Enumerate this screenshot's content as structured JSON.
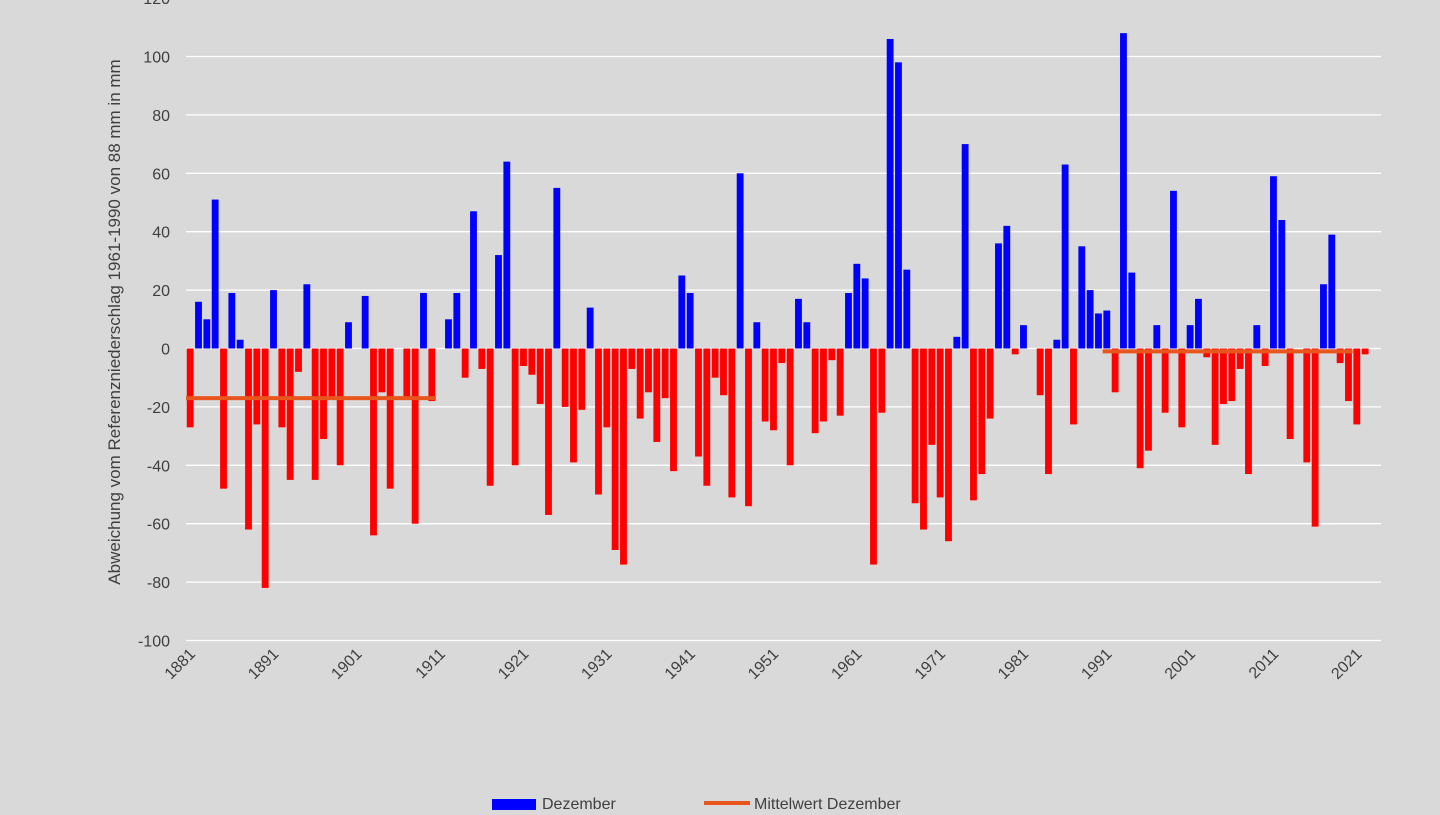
{
  "chart_data": {
    "type": "bar",
    "title": "",
    "xlabel": "",
    "ylabel": "Abweichung vom Referenzniederschlag 1961-1990 von 88 mm in mm",
    "ylim": [
      -100,
      120
    ],
    "yticks": [
      -100,
      -80,
      -60,
      -40,
      -20,
      0,
      20,
      40,
      60,
      80,
      100,
      120
    ],
    "xticks": [
      "1881",
      "1891",
      "1901",
      "1911",
      "1921",
      "1931",
      "1941",
      "1951",
      "1961",
      "1971",
      "1981",
      "1991",
      "2001",
      "2011",
      "2021"
    ],
    "grid": true,
    "legend_position": "bottom",
    "x_start": 1881,
    "x_end": 2022,
    "series": [
      {
        "name": "Dezember",
        "type": "bar",
        "color_positive": "#0000ff",
        "color_negative": "#ff0000",
        "values": [
          -27,
          16,
          10,
          51,
          -48,
          19,
          3,
          -62,
          -26,
          -82,
          20,
          -27,
          -45,
          -8,
          22,
          -45,
          -31,
          -17,
          -40,
          9,
          0,
          18,
          -64,
          -15,
          -48,
          0,
          -17,
          -60,
          19,
          -18,
          0,
          10,
          19,
          -10,
          47,
          -7,
          -47,
          32,
          64,
          -40,
          -6,
          -9,
          -19,
          -57,
          55,
          -20,
          -39,
          -21,
          14,
          -50,
          -27,
          -69,
          -74,
          -7,
          -24,
          -15,
          -32,
          -17,
          -42,
          25,
          19,
          -37,
          -47,
          -10,
          -16,
          -51,
          60,
          -54,
          9,
          -25,
          -28,
          -5,
          -40,
          17,
          9,
          -29,
          -25,
          -4,
          -23,
          19,
          29,
          24,
          -74,
          -22,
          106,
          98,
          27,
          -53,
          -62,
          -33,
          -51,
          -66,
          4,
          70,
          -52,
          -43,
          -24,
          36,
          42,
          -2,
          8,
          0,
          -16,
          -43,
          3,
          63,
          -26,
          35,
          20,
          12,
          13,
          -15,
          108,
          26,
          -41,
          -35,
          8,
          -22,
          54,
          -27,
          8,
          17,
          -3,
          -33,
          -19,
          -18,
          -7,
          -43,
          8,
          -6,
          59,
          44,
          -31,
          0,
          -39,
          -61,
          22,
          39,
          -5,
          -18,
          -26,
          -2
        ]
      },
      {
        "name": "Mittelwert Dezember",
        "type": "line",
        "color": "#e8561e",
        "segments": [
          {
            "x": [
              1881,
              1910
            ],
            "y": [
              -17,
              -17
            ]
          },
          {
            "x": [
              1991,
              2020
            ],
            "y": [
              -1,
              -1
            ]
          }
        ]
      }
    ]
  }
}
